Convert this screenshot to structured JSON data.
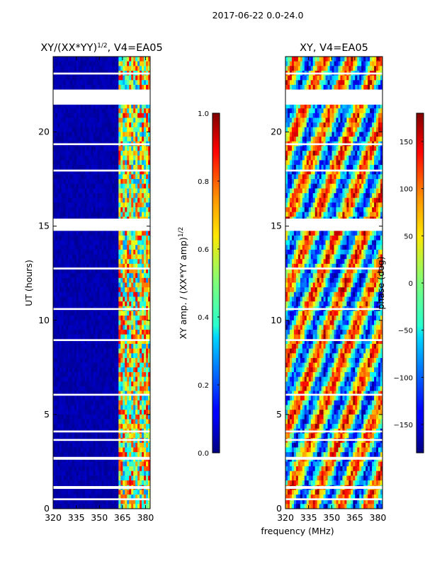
{
  "suptitle": "2017-06-22 0.0-24.0",
  "shared_xlabel": "frequency (MHz)",
  "colormap": "jet",
  "chart_data": [
    {
      "type": "heatmap",
      "title_main": "XY/(XX*YY)",
      "title_sup": "1/2",
      "title_tail": ", V4=EA05",
      "ylabel": "UT (hours)",
      "xlim": [
        320,
        383
      ],
      "ylim": [
        0,
        24
      ],
      "xticks": [
        320,
        335,
        350,
        365,
        380
      ],
      "yticks": [
        0,
        5,
        10,
        15,
        20
      ],
      "colorbar": {
        "label_main": "XY amp. / (XX*YY amp)",
        "label_sup": "1/2",
        "range": [
          0.0,
          1.0
        ],
        "ticks": [
          "0.0",
          "0.2",
          "0.4",
          "0.6",
          "0.8",
          "1.0"
        ]
      },
      "gaps_ut": [
        [
          21.45,
          22.25
        ],
        [
          14.75,
          15.4
        ],
        [
          2.6,
          2.75
        ],
        [
          1.05,
          1.2
        ],
        [
          0.45,
          0.55
        ],
        [
          8.9,
          9.0
        ],
        [
          4.05,
          4.15
        ],
        [
          3.6,
          3.7
        ],
        [
          12.7,
          12.8
        ],
        [
          10.55,
          10.65
        ],
        [
          6.0,
          6.1
        ],
        [
          17.9,
          18.0
        ],
        [
          19.3,
          19.4
        ],
        [
          23.05,
          23.15
        ]
      ],
      "blank_ut": [
        [
          21.45,
          22.25
        ],
        [
          14.75,
          15.4
        ]
      ],
      "notes": "Low amplitude (~0.0-0.05) across 320-362 MHz; high amplitude (0.4-0.9) in 362-380 MHz band"
    },
    {
      "type": "heatmap",
      "title_main": "XY, V4=EA05",
      "title_sup": "",
      "title_tail": "",
      "ylabel": "",
      "xlim": [
        320,
        383
      ],
      "ylim": [
        0,
        24
      ],
      "xticks": [
        320,
        335,
        350,
        365,
        380
      ],
      "yticks": [
        0,
        5,
        10,
        15,
        20
      ],
      "colorbar": {
        "label_main": "phase (deg)",
        "label_sup": "",
        "range": [
          -180,
          180
        ],
        "ticks": [
          "−150",
          "−100",
          "−50",
          "0",
          "50",
          "100",
          "150"
        ],
        "tick_values": [
          -150,
          -100,
          -50,
          0,
          50,
          100,
          150
        ]
      },
      "gaps_ut": [
        [
          21.45,
          22.25
        ],
        [
          14.75,
          15.4
        ],
        [
          2.6,
          2.75
        ],
        [
          1.05,
          1.2
        ],
        [
          0.45,
          0.55
        ],
        [
          8.9,
          9.0
        ],
        [
          4.05,
          4.15
        ],
        [
          3.6,
          3.7
        ],
        [
          12.7,
          12.8
        ],
        [
          10.55,
          10.65
        ],
        [
          6.0,
          6.1
        ],
        [
          17.9,
          18.0
        ],
        [
          19.3,
          19.4
        ],
        [
          23.05,
          23.15
        ]
      ],
      "blank_ut": [
        [
          21.45,
          22.25
        ],
        [
          14.75,
          15.4
        ]
      ],
      "notes": "Phase varies widely from -180 to 180 deg across all frequencies"
    }
  ]
}
